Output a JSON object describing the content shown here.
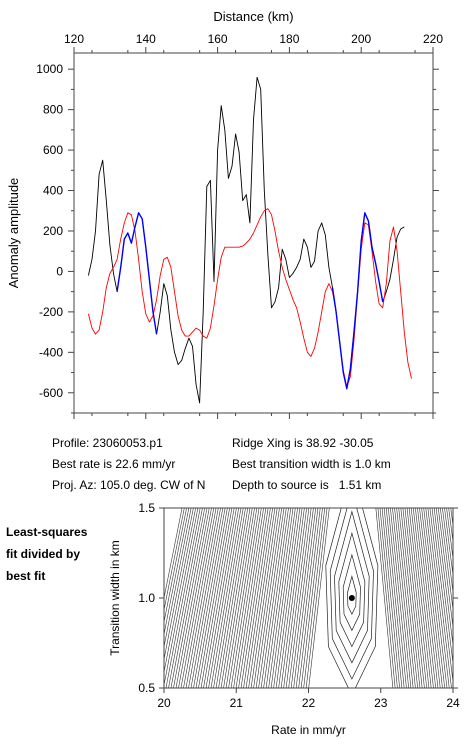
{
  "info": {
    "profile": "Profile: 23060053.p1",
    "best_rate": "Best rate is 22.6 mm/yr",
    "proj_az": "Proj. Az: 105.0 deg. CW of N",
    "ridge_xing": "Ridge Xing is 38.92 -30.05",
    "best_width": "Best transition width is 1.0 km",
    "depth": "Depth to source is   1.51 km"
  },
  "side_label": [
    "Least-squares",
    "fit divided by",
    "best fit"
  ],
  "chart_data": [
    {
      "type": "line",
      "title": "",
      "xlabel": "Distance (km)",
      "ylabel": "Anomaly amplitude",
      "xlim": [
        120,
        220
      ],
      "ylim": [
        -700,
        1080
      ],
      "x_ticks": [
        120,
        140,
        160,
        180,
        200,
        220
      ],
      "y_ticks": [
        -600,
        -400,
        -200,
        0,
        200,
        400,
        600,
        800,
        1000
      ],
      "grid": false,
      "series": [
        {
          "color": "#000000",
          "points": [
            [
              124,
              -20
            ],
            [
              125,
              60
            ],
            [
              126,
              200
            ],
            [
              127,
              480
            ],
            [
              128,
              550
            ],
            [
              129,
              350
            ],
            [
              130,
              130
            ],
            [
              131,
              -10
            ],
            [
              132,
              -100
            ],
            [
              133,
              20
            ],
            [
              134,
              160
            ],
            [
              135,
              190
            ],
            [
              136,
              140
            ],
            [
              137,
              220
            ],
            [
              138,
              290
            ],
            [
              139,
              260
            ],
            [
              140,
              120
            ],
            [
              141,
              -40
            ],
            [
              142,
              -200
            ],
            [
              143,
              -310
            ],
            [
              144,
              -200
            ],
            [
              145,
              -60
            ],
            [
              146,
              -120
            ],
            [
              147,
              -290
            ],
            [
              148,
              -400
            ],
            [
              149,
              -460
            ],
            [
              150,
              -440
            ],
            [
              151,
              -380
            ],
            [
              152,
              -330
            ],
            [
              153,
              -370
            ],
            [
              154,
              -560
            ],
            [
              155,
              -650
            ],
            [
              156,
              -200
            ],
            [
              157,
              420
            ],
            [
              158,
              450
            ],
            [
              159,
              -50
            ],
            [
              160,
              600
            ],
            [
              161,
              820
            ],
            [
              162,
              700
            ],
            [
              163,
              460
            ],
            [
              164,
              520
            ],
            [
              165,
              680
            ],
            [
              166,
              590
            ],
            [
              167,
              350
            ],
            [
              168,
              380
            ],
            [
              169,
              240
            ],
            [
              170,
              750
            ],
            [
              171,
              960
            ],
            [
              172,
              900
            ],
            [
              173,
              400
            ],
            [
              174,
              80
            ],
            [
              175,
              -180
            ],
            [
              176,
              -150
            ],
            [
              177,
              -80
            ],
            [
              178,
              110
            ],
            [
              179,
              60
            ],
            [
              180,
              -30
            ],
            [
              181,
              -10
            ],
            [
              182,
              20
            ],
            [
              183,
              60
            ],
            [
              184,
              160
            ],
            [
              185,
              120
            ],
            [
              186,
              20
            ],
            [
              187,
              50
            ],
            [
              188,
              200
            ],
            [
              189,
              240
            ],
            [
              190,
              180
            ],
            [
              191,
              20
            ],
            [
              192,
              -80
            ],
            [
              193,
              -200
            ],
            [
              194,
              -350
            ],
            [
              195,
              -500
            ],
            [
              196,
              -580
            ],
            [
              197,
              -480
            ],
            [
              198,
              -300
            ],
            [
              199,
              -100
            ],
            [
              200,
              150
            ],
            [
              201,
              290
            ],
            [
              202,
              250
            ],
            [
              203,
              120
            ],
            [
              204,
              40
            ],
            [
              205,
              -50
            ],
            [
              206,
              -150
            ],
            [
              207,
              -100
            ],
            [
              208,
              -40
            ],
            [
              209,
              60
            ],
            [
              210,
              170
            ],
            [
              211,
              210
            ],
            [
              212,
              220
            ]
          ]
        },
        {
          "color": "#ff0000",
          "points": [
            [
              124,
              -210
            ],
            [
              125,
              -280
            ],
            [
              126,
              -310
            ],
            [
              127,
              -290
            ],
            [
              128,
              -200
            ],
            [
              129,
              -80
            ],
            [
              130,
              -10
            ],
            [
              131,
              20
            ],
            [
              132,
              60
            ],
            [
              133,
              160
            ],
            [
              134,
              240
            ],
            [
              135,
              290
            ],
            [
              136,
              280
            ],
            [
              137,
              200
            ],
            [
              138,
              60
            ],
            [
              139,
              -100
            ],
            [
              140,
              -210
            ],
            [
              141,
              -250
            ],
            [
              142,
              -220
            ],
            [
              143,
              -140
            ],
            [
              144,
              -20
            ],
            [
              145,
              60
            ],
            [
              146,
              70
            ],
            [
              147,
              20
            ],
            [
              148,
              -100
            ],
            [
              149,
              -220
            ],
            [
              150,
              -290
            ],
            [
              151,
              -320
            ],
            [
              152,
              -320
            ],
            [
              153,
              -300
            ],
            [
              154,
              -280
            ],
            [
              155,
              -290
            ],
            [
              156,
              -320
            ],
            [
              157,
              -330
            ],
            [
              158,
              -280
            ],
            [
              159,
              -170
            ],
            [
              160,
              -40
            ],
            [
              161,
              70
            ],
            [
              162,
              120
            ],
            [
              163,
              120
            ],
            [
              164,
              120
            ],
            [
              165,
              120
            ],
            [
              166,
              120
            ],
            [
              167,
              125
            ],
            [
              168,
              140
            ],
            [
              169,
              160
            ],
            [
              170,
              190
            ],
            [
              171,
              230
            ],
            [
              172,
              270
            ],
            [
              173,
              300
            ],
            [
              174,
              310
            ],
            [
              175,
              280
            ],
            [
              176,
              200
            ],
            [
              177,
              100
            ],
            [
              178,
              20
            ],
            [
              179,
              -40
            ],
            [
              180,
              -90
            ],
            [
              181,
              -140
            ],
            [
              182,
              -180
            ],
            [
              183,
              -250
            ],
            [
              184,
              -330
            ],
            [
              185,
              -400
            ],
            [
              186,
              -420
            ],
            [
              187,
              -380
            ],
            [
              188,
              -300
            ],
            [
              189,
              -200
            ],
            [
              190,
              -100
            ],
            [
              191,
              -60
            ],
            [
              192,
              -100
            ],
            [
              193,
              -200
            ],
            [
              194,
              -350
            ],
            [
              195,
              -490
            ],
            [
              196,
              -570
            ],
            [
              197,
              -520
            ],
            [
              198,
              -340
            ],
            [
              199,
              -110
            ],
            [
              200,
              110
            ],
            [
              201,
              240
            ],
            [
              202,
              230
            ],
            [
              203,
              100
            ],
            [
              204,
              -50
            ],
            [
              205,
              -160
            ],
            [
              206,
              -180
            ],
            [
              207,
              -60
            ],
            [
              208,
              150
            ],
            [
              209,
              220
            ],
            [
              210,
              100
            ],
            [
              211,
              -100
            ],
            [
              212,
              -300
            ],
            [
              213,
              -450
            ],
            [
              214,
              -530
            ]
          ]
        },
        {
          "color": "#0000ff",
          "points": [
            [
              132,
              -100
            ],
            [
              133,
              20
            ],
            [
              134,
              160
            ],
            [
              135,
              190
            ],
            [
              136,
              140
            ],
            [
              137,
              220
            ],
            [
              138,
              290
            ],
            [
              139,
              260
            ],
            [
              140,
              120
            ],
            [
              141,
              -40
            ],
            [
              142,
              -200
            ],
            [
              143,
              -310
            ]
          ]
        },
        {
          "color": "#0000ff",
          "points": [
            [
              192,
              -80
            ],
            [
              193,
              -200
            ],
            [
              194,
              -350
            ],
            [
              195,
              -500
            ],
            [
              196,
              -580
            ],
            [
              197,
              -480
            ],
            [
              198,
              -300
            ],
            [
              199,
              -100
            ],
            [
              200,
              150
            ],
            [
              201,
              290
            ],
            [
              202,
              250
            ],
            [
              203,
              120
            ],
            [
              204,
              40
            ],
            [
              205,
              -50
            ],
            [
              206,
              -150
            ]
          ]
        }
      ]
    },
    {
      "type": "contour",
      "title": "",
      "xlabel": "Rate in mm/yr",
      "ylabel": "Transition width in km",
      "xlim": [
        20,
        24
      ],
      "ylim": [
        0.5,
        1.5
      ],
      "x_ticks": [
        20,
        21,
        22,
        23,
        24
      ],
      "y_ticks": [
        0.5,
        1.0,
        1.5
      ],
      "best_fit_point": [
        22.6,
        1.0
      ]
    }
  ]
}
